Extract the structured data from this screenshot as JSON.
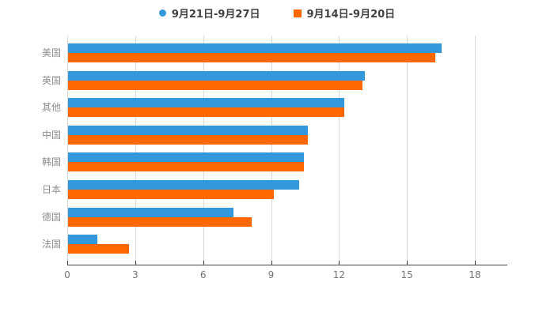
{
  "chart_data": {
    "type": "bar",
    "orientation": "horizontal",
    "title": "",
    "xlabel": "",
    "ylabel": "",
    "categories": [
      "美国",
      "英国",
      "其他",
      "中国",
      "韩国",
      "日本",
      "德国",
      "法国"
    ],
    "series": [
      {
        "name": "9月21日-9月27日",
        "color": "#3398DB",
        "marker": "circle",
        "values": [
          16.5,
          13.1,
          12.2,
          10.6,
          10.4,
          10.2,
          7.3,
          1.3
        ]
      },
      {
        "name": "9月14日-9月20日",
        "color": "#FF6700",
        "marker": "square",
        "values": [
          16.2,
          13.0,
          12.2,
          10.6,
          10.4,
          9.1,
          8.1,
          2.7
        ]
      }
    ],
    "x_ticks": [
      0,
      3,
      6,
      9,
      12,
      15,
      18
    ],
    "xlim": [
      0,
      18
    ],
    "grid": true,
    "legend_position": "top",
    "colors": {
      "gridline": "#D8D8D8",
      "axis_line": "#404040",
      "tick_label": "#737373",
      "category_label": "#8C8C8C",
      "legend_text": "#404040",
      "background": "#FFFFFF"
    }
  }
}
